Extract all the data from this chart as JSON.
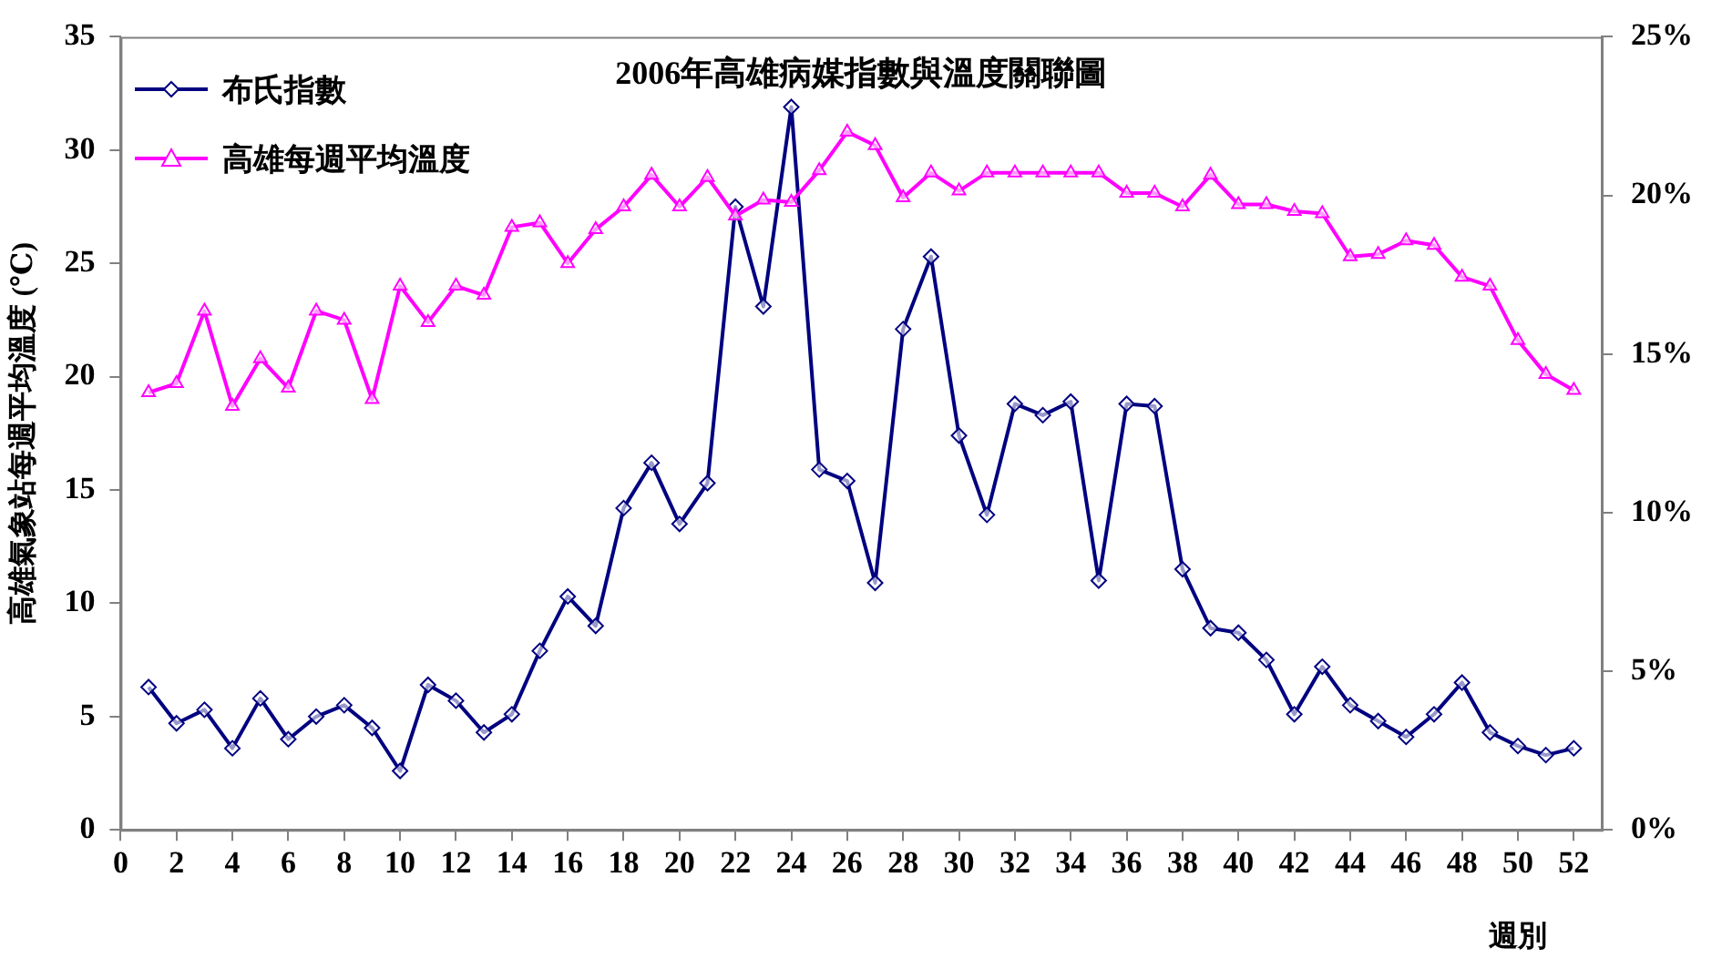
{
  "chart_data": {
    "type": "line",
    "title": "2006年高雄病媒指數與溫度關聯圖",
    "xlabel": "週別",
    "ylabel": "高雄氣象站每週平均溫度 (℃)",
    "x": [
      1,
      2,
      3,
      4,
      5,
      6,
      7,
      8,
      9,
      10,
      11,
      12,
      13,
      14,
      15,
      16,
      17,
      18,
      19,
      20,
      21,
      22,
      23,
      24,
      25,
      26,
      27,
      28,
      29,
      30,
      31,
      32,
      33,
      34,
      35,
      36,
      37,
      38,
      39,
      40,
      41,
      42,
      43,
      44,
      45,
      46,
      47,
      48,
      49,
      50,
      51,
      52
    ],
    "xlim": [
      0,
      53
    ],
    "xticks": [
      0,
      2,
      4,
      6,
      8,
      10,
      12,
      14,
      16,
      18,
      20,
      22,
      24,
      26,
      28,
      30,
      32,
      34,
      36,
      38,
      40,
      42,
      44,
      46,
      48,
      50,
      52
    ],
    "ylim": [
      0,
      35
    ],
    "yticks": [
      0,
      5,
      10,
      15,
      20,
      25,
      30,
      35
    ],
    "y2lim": [
      0,
      25
    ],
    "y2ticks": [
      {
        "value": 0,
        "label": "0%"
      },
      {
        "value": 5,
        "label": "5%"
      },
      {
        "value": 10,
        "label": "10%"
      },
      {
        "value": 15,
        "label": "15%"
      },
      {
        "value": 20,
        "label": "20%"
      },
      {
        "value": 25,
        "label": "25%"
      }
    ],
    "legend": "top left",
    "series": [
      {
        "name": "布氏指數",
        "color": "#000080",
        "marker": "diamond",
        "values": [
          6.3,
          4.7,
          5.3,
          3.6,
          5.8,
          4.0,
          5.0,
          5.5,
          4.5,
          2.6,
          6.4,
          5.7,
          4.3,
          5.1,
          7.9,
          10.3,
          9.0,
          14.2,
          16.2,
          13.5,
          15.3,
          27.5,
          23.1,
          31.9,
          15.9,
          15.4,
          10.9,
          22.1,
          25.3,
          17.4,
          13.9,
          18.8,
          18.3,
          18.9,
          11.0,
          18.8,
          18.7,
          11.5,
          8.9,
          8.7,
          7.5,
          5.1,
          7.2,
          5.5,
          4.8,
          4.1,
          5.1,
          6.5,
          4.3,
          3.7,
          3.3,
          3.6
        ]
      },
      {
        "name": "高雄每週平均溫度",
        "color": "#ff00ff",
        "marker": "triangle",
        "values": [
          19.3,
          19.7,
          22.9,
          18.7,
          20.8,
          19.5,
          22.9,
          22.5,
          19.0,
          24.0,
          22.4,
          24.0,
          23.6,
          26.6,
          26.8,
          25.0,
          26.5,
          27.5,
          28.9,
          27.5,
          28.8,
          27.1,
          27.8,
          27.7,
          29.1,
          30.8,
          30.2,
          27.9,
          29.0,
          28.2,
          29.0,
          29.0,
          29.0,
          29.0,
          29.0,
          28.1,
          28.1,
          27.5,
          28.9,
          27.6,
          27.6,
          27.3,
          27.2,
          25.3,
          25.4,
          26.0,
          25.8,
          24.4,
          24.0,
          21.6,
          20.1,
          19.4
        ]
      }
    ]
  }
}
